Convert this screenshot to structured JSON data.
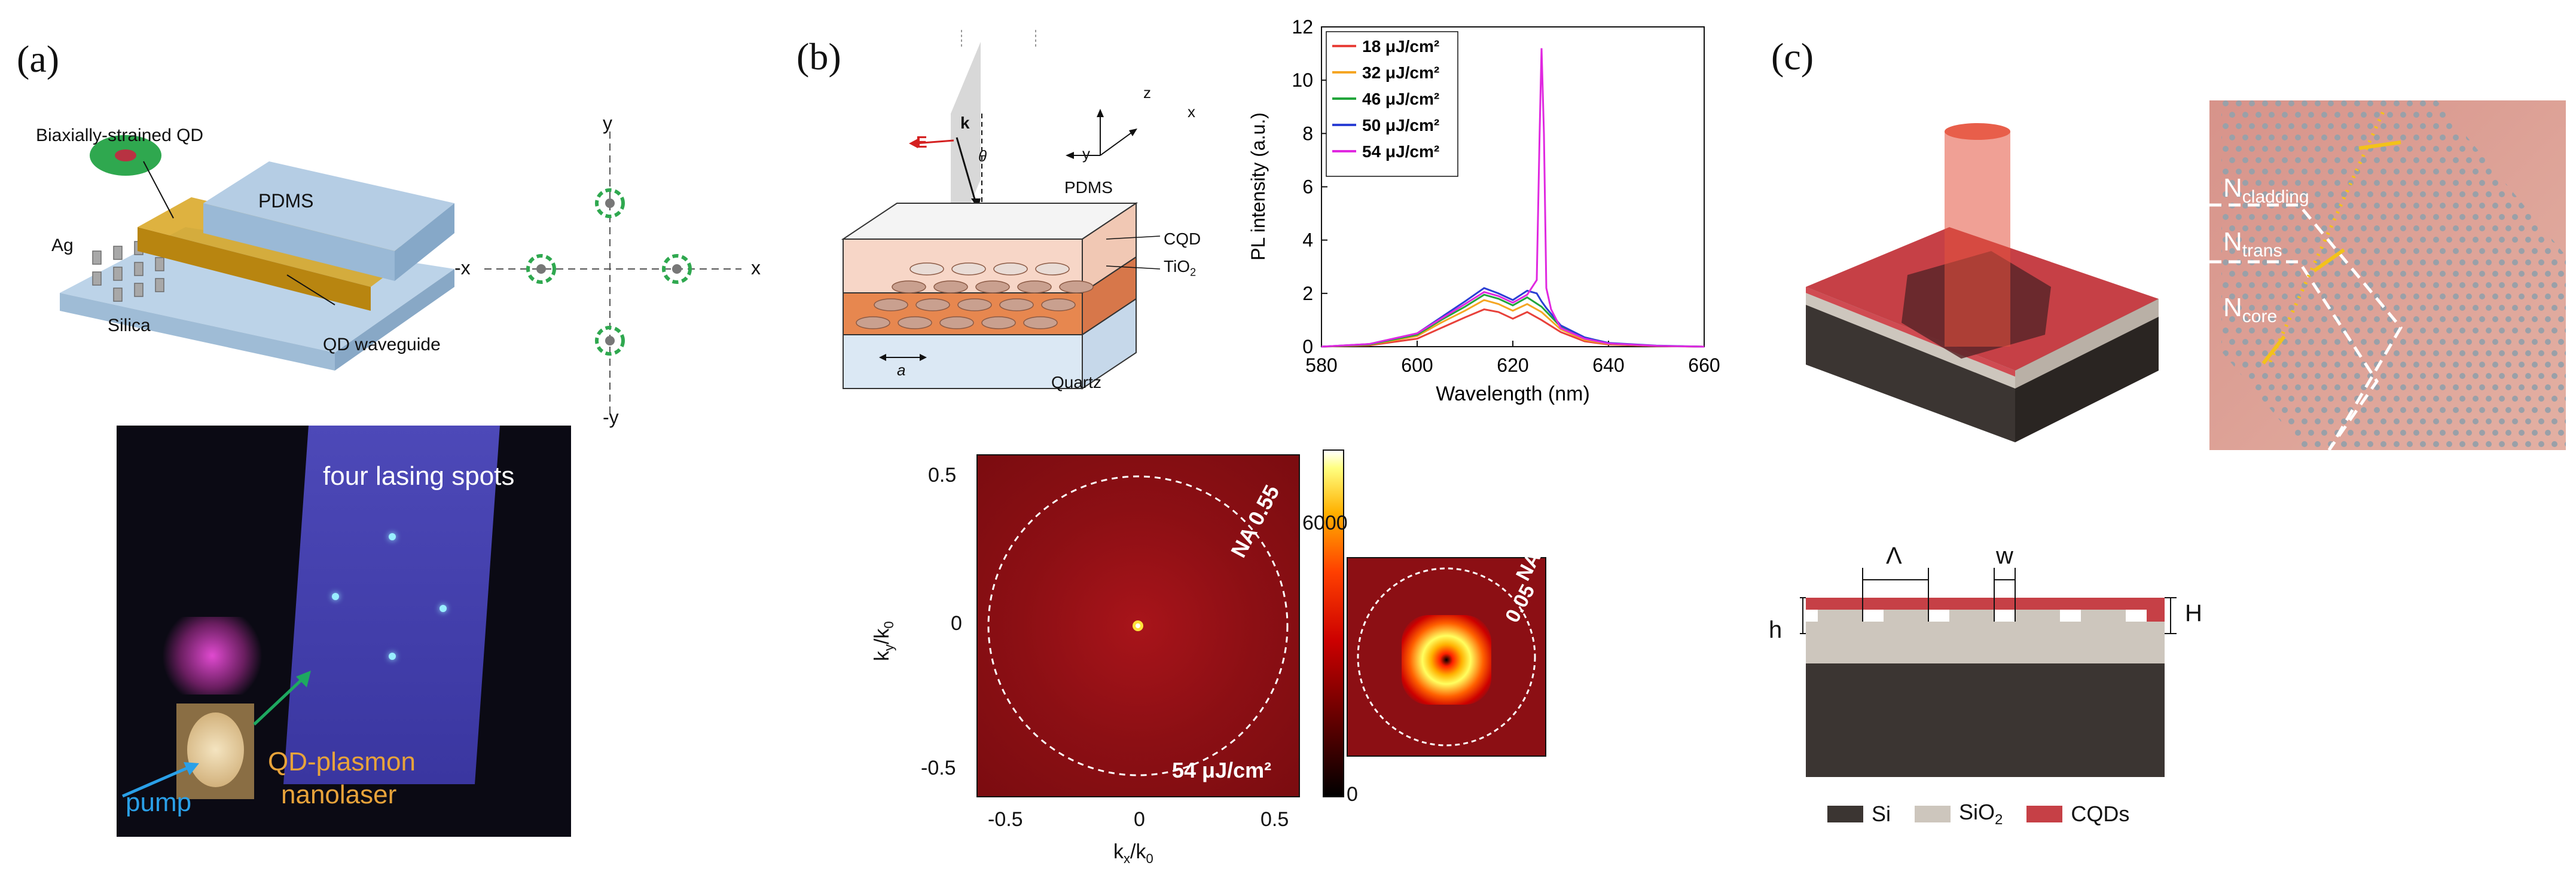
{
  "panels": {
    "a": {
      "label": "(a)",
      "schematic": {
        "qd_label": "Biaxially-strained QD",
        "pdms": "PDMS",
        "ag": "Ag",
        "silica": "Silica",
        "waveguide": "QD waveguide"
      },
      "axes": {
        "y": "y",
        "neg_y": "-y",
        "x": "x",
        "neg_x": "-x"
      },
      "photo": {
        "lasing_spots": "four lasing spots",
        "nanolaser_line1": "QD-plasmon",
        "nanolaser_line2": "nanolaser",
        "pump": "pump"
      }
    },
    "b": {
      "label": "(b)",
      "schematic": {
        "E": "E",
        "k": "k",
        "theta": "θ",
        "z": "z",
        "x": "x",
        "y": "y",
        "pdms": "PDMS",
        "cqd": "CQD",
        "tio2": "TiO",
        "tio2_sub": "2",
        "quartz": "Quartz",
        "period": "a"
      },
      "spectrum_chart": {
        "type": "line",
        "xlabel": "Wavelength (nm)",
        "ylabel": "PL intensity (a.u.)",
        "xlim": [
          580,
          660
        ],
        "ylim": [
          0,
          12
        ],
        "xticks": [
          "580",
          "600",
          "620",
          "640",
          "660"
        ],
        "yticks": [
          "0",
          "2",
          "4",
          "6",
          "8",
          "10",
          "12"
        ],
        "series": [
          {
            "name": "18 μJ/cm²",
            "color": "#e8413a",
            "x": [
              580,
              590,
              600,
              605,
              610,
              614,
              617,
              620,
              623,
              626,
              630,
              635,
              640,
              650,
              660
            ],
            "values": [
              0,
              0.05,
              0.3,
              0.7,
              1.1,
              1.4,
              1.3,
              1.05,
              1.3,
              1.0,
              0.55,
              0.2,
              0.08,
              0.02,
              0
            ]
          },
          {
            "name": "32 μJ/cm²",
            "color": "#f5a623",
            "x": [
              580,
              590,
              600,
              605,
              610,
              614,
              617,
              620,
              623,
              626,
              630,
              635,
              640,
              650,
              660
            ],
            "values": [
              0,
              0.07,
              0.4,
              0.9,
              1.35,
              1.75,
              1.6,
              1.35,
              1.6,
              1.3,
              0.65,
              0.25,
              0.1,
              0.03,
              0
            ]
          },
          {
            "name": "46 μJ/cm²",
            "color": "#22a53b",
            "x": [
              580,
              590,
              600,
              605,
              610,
              614,
              617,
              620,
              623,
              626,
              630,
              635,
              640,
              650,
              660
            ],
            "values": [
              0,
              0.08,
              0.45,
              1.0,
              1.5,
              1.95,
              1.8,
              1.55,
              1.85,
              1.5,
              0.75,
              0.3,
              0.12,
              0.03,
              0
            ]
          },
          {
            "name": "50 μJ/cm²",
            "color": "#2b3fd4",
            "x": [
              580,
              590,
              600,
              605,
              610,
              614,
              617,
              620,
              623,
              625,
              626,
              627,
              630,
              635,
              640,
              650,
              660
            ],
            "values": [
              0,
              0.1,
              0.5,
              1.1,
              1.7,
              2.2,
              2.0,
              1.75,
              2.1,
              2.0,
              1.7,
              1.45,
              0.8,
              0.35,
              0.14,
              0.04,
              0
            ]
          },
          {
            "name": "54 μJ/cm²",
            "color": "#e028e0",
            "x": [
              580,
              590,
              600,
              605,
              610,
              614,
              617,
              620,
              623,
              625,
              625.6,
              626,
              626.5,
              627,
              628,
              630,
              635,
              640,
              650,
              660
            ],
            "values": [
              0,
              0.1,
              0.5,
              1.05,
              1.6,
              2.05,
              1.9,
              1.65,
              1.95,
              2.5,
              8,
              11.2,
              8,
              2.2,
              1.4,
              0.7,
              0.3,
              0.12,
              0.03,
              0
            ]
          }
        ]
      },
      "farfield": {
        "type": "heatmap",
        "xlabel": "k",
        "xlabel_sub": "x",
        "xlabel_den": "/k",
        "xlabel_den_sub": "0",
        "ylabel": "k",
        "ylabel_sub": "y",
        "ylabel_den": "/k",
        "ylabel_den_sub": "0",
        "xlim": [
          -0.6,
          0.6
        ],
        "ylim": [
          -0.6,
          0.6
        ],
        "xticks": [
          "-0.5",
          "0",
          "0.5"
        ],
        "yticks": [
          "0.5",
          "0",
          "-0.5"
        ],
        "na_label": "NA 0.55",
        "fluence_label": "54 μJ/cm²",
        "colorbar_max": "6000",
        "colorbar_min": "0",
        "inset_na_label_1": "NA",
        "inset_na_label_2": "0.05"
      }
    },
    "c": {
      "label": "(c)",
      "zoom": {
        "cladding": "N",
        "cladding_sub": "cladding",
        "trans": "N",
        "trans_sub": "trans",
        "core": "N",
        "core_sub": "core"
      },
      "cross_section": {
        "lambda": "Λ",
        "w": "w",
        "h": "h",
        "H": "H"
      },
      "legend": [
        {
          "label": "Si",
          "color": "#3b3532"
        },
        {
          "label": "SiO",
          "sub": "2",
          "color": "#cdc6bd"
        },
        {
          "label": "CQDs",
          "color": "#c94b4f"
        }
      ]
    }
  }
}
